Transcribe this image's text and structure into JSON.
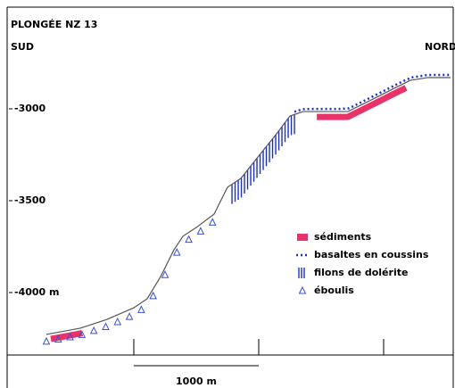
{
  "chart_data": {
    "type": "line",
    "title": "PLONGÉE NZ 13",
    "left_label": "SUD",
    "right_label": "NORD",
    "x": [
      300,
      572,
      786,
      1000,
      1107,
      1215,
      1322,
      1393,
      1500,
      1643,
      1750,
      1857,
      2000,
      2143,
      2250,
      2357,
      2714,
      2929,
      3071,
      3214,
      3357,
      3536
    ],
    "values": [
      -4228,
      -4194,
      -4146,
      -4083,
      -4034,
      -3913,
      -3767,
      -3694,
      -3646,
      -3573,
      -3427,
      -3379,
      -3257,
      -3136,
      -3039,
      -3015,
      -3015,
      -2942,
      -2893,
      -2845,
      -2830,
      -2830
    ],
    "color": "#555555",
    "xlim": [
      -14,
      3557
    ],
    "xticks": [
      1000,
      2000,
      3000
    ],
    "ylim": [
      -4340,
      -2602
    ],
    "yticks": [
      -3000,
      -3500,
      {
        "value": -4000,
        "label": "-4000 m"
      }
    ],
    "scale_bar": {
      "from": 1000,
      "to": 2000,
      "label": "1000 m"
    },
    "features": [
      {
        "name": "sédiments",
        "color": "#e8336a",
        "ranges": [
          [
            336,
            586
          ],
          [
            2465,
            3179
          ]
        ]
      },
      {
        "name": "basaltes en coussins",
        "color": "#1a2fd0",
        "ranges": [
          [
            2286,
            3536
          ]
        ]
      },
      {
        "name": "filons de dolérite",
        "color": "#1a2fd0",
        "ranges": [
          [
            1786,
            2286
          ]
        ]
      },
      {
        "name": "éboulis",
        "color": "#3a4fd8",
        "ranges": [
          [
            300,
            1643
          ]
        ]
      }
    ]
  }
}
